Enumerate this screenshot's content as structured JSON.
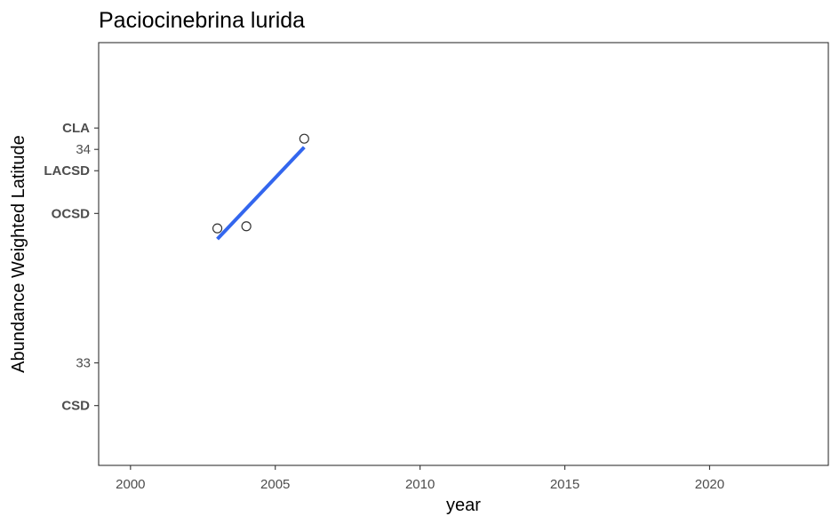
{
  "chart_data": {
    "type": "scatter",
    "title": "Paciocinebrina lurida",
    "xlabel": "year",
    "ylabel": "Abundance Weighted Latitude",
    "xlim": [
      1998.9,
      2024.1
    ],
    "ylim": [
      32.52,
      34.5
    ],
    "x_ticks": [
      2000,
      2005,
      2010,
      2015,
      2020
    ],
    "y_ticks": [
      33,
      34
    ],
    "site_ticks": [
      {
        "label": "CLA",
        "y": 34.1
      },
      {
        "label": "LACSD",
        "y": 33.9
      },
      {
        "label": "OCSD",
        "y": 33.7
      },
      {
        "label": "CSD",
        "y": 32.8
      }
    ],
    "points": [
      {
        "x": 2003,
        "y": 33.63
      },
      {
        "x": 2004,
        "y": 33.64
      },
      {
        "x": 2006,
        "y": 34.05
      }
    ],
    "trend_line": [
      {
        "x": 2003,
        "y": 33.58
      },
      {
        "x": 2006,
        "y": 34.01
      }
    ],
    "trend_color": "#3366ee",
    "grid": false,
    "legend": "none"
  }
}
